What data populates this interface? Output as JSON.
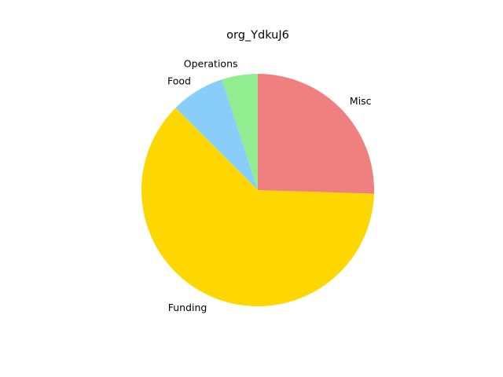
{
  "chart_data": {
    "type": "pie",
    "title": "org_YdkuJ6",
    "start_angle_deg": 90,
    "direction": "counterclockwise",
    "slices": [
      {
        "label": "Operations",
        "value": 5,
        "color": "#90ee90"
      },
      {
        "label": "Food",
        "value": 7.5,
        "color": "#87cefa"
      },
      {
        "label": "Funding",
        "value": 62,
        "color": "#ffd700"
      },
      {
        "label": "Misc",
        "value": 25.5,
        "color": "#f08080"
      }
    ]
  }
}
